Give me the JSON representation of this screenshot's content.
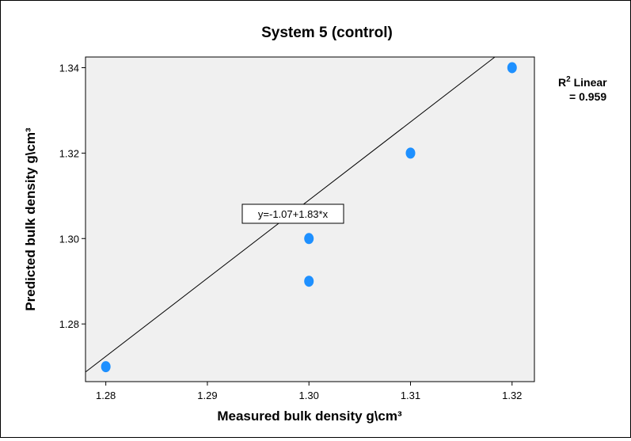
{
  "chart_data": {
    "type": "scatter",
    "title": "System 5 (control)",
    "xlabel": "Measured bulk density g\\cm³",
    "ylabel": "Predicted bulk density g\\cm³",
    "xlim": [
      1.278,
      1.3222
    ],
    "ylim": [
      1.2665,
      1.3425
    ],
    "xticks": [
      1.28,
      1.29,
      1.3,
      1.31,
      1.32
    ],
    "xtick_labels": [
      "1.28",
      "1.29",
      "1.30",
      "1.31",
      "1.32"
    ],
    "yticks": [
      1.28,
      1.3,
      1.32,
      1.34
    ],
    "ytick_labels": [
      "1.28",
      "1.30",
      "1.32",
      "1.34"
    ],
    "points": [
      {
        "x": 1.28,
        "y": 1.27
      },
      {
        "x": 1.3,
        "y": 1.29
      },
      {
        "x": 1.3,
        "y": 1.3
      },
      {
        "x": 1.31,
        "y": 1.32
      },
      {
        "x": 1.32,
        "y": 1.34
      }
    ],
    "fit_line": {
      "intercept": -1.07,
      "slope": 1.83
    },
    "fit_equation": "y=-1.07+1.83*x",
    "r2_label": "R",
    "r2_superscript": "2",
    "r2_label_suffix": " Linear",
    "r2_value_text": "= 0.959",
    "grid": false,
    "colors": {
      "plot_background": "#f0f0f0",
      "marker": "#1e90ff",
      "line": "#000000"
    }
  }
}
